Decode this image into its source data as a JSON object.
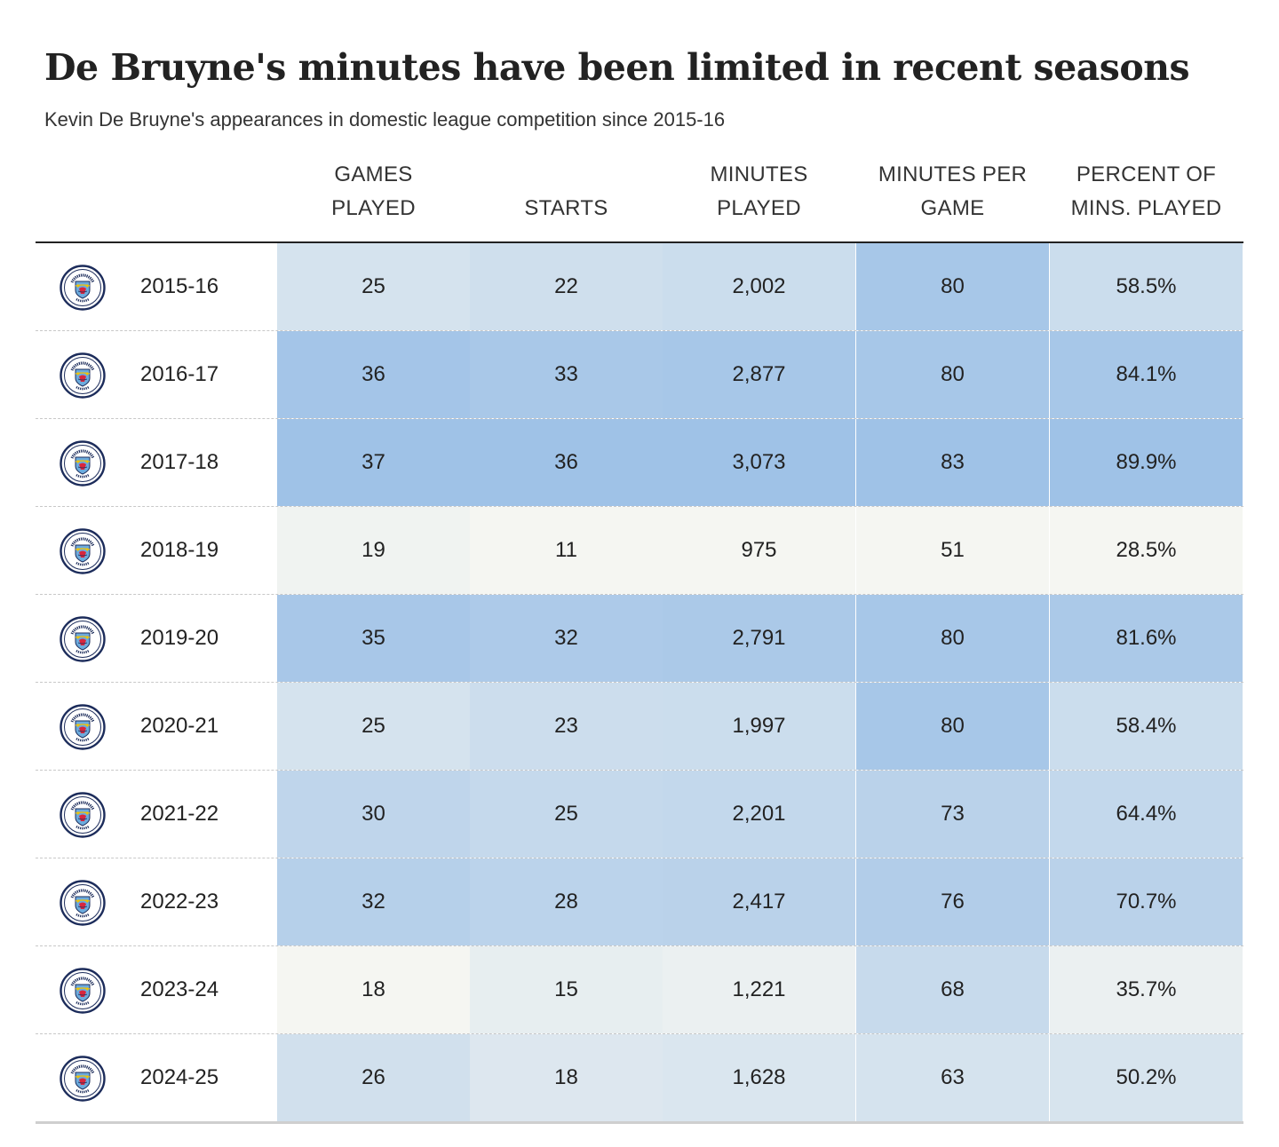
{
  "title": "De Bruyne's minutes have been limited in recent seasons",
  "subtitle": "Kevin De Bruyne's appearances in domestic league competition since 2015-16",
  "logo_icon": "manchester-city-crest-icon",
  "logo_text": "MANCHESTER CITY",
  "colors": {
    "low": "#f5f6f2",
    "high": "#9fc2e7",
    "text": "#222222"
  },
  "chart_data": {
    "type": "table",
    "columns": [
      {
        "key": "games",
        "label": [
          "GAMES",
          "PLAYED"
        ]
      },
      {
        "key": "starts",
        "label": [
          "STARTS"
        ]
      },
      {
        "key": "minutes",
        "label": [
          "MINUTES",
          "PLAYED"
        ]
      },
      {
        "key": "mpg",
        "label": [
          "MINUTES PER",
          "GAME"
        ]
      },
      {
        "key": "pct",
        "label": [
          "PERCENT OF",
          "MINS. PLAYED"
        ]
      }
    ],
    "rows": [
      {
        "season": "2015-16",
        "games": 25,
        "starts": 22,
        "minutes": 2002,
        "mpg": 80,
        "pct": 58.5
      },
      {
        "season": "2016-17",
        "games": 36,
        "starts": 33,
        "minutes": 2877,
        "mpg": 80,
        "pct": 84.1
      },
      {
        "season": "2017-18",
        "games": 37,
        "starts": 36,
        "minutes": 3073,
        "mpg": 83,
        "pct": 89.9
      },
      {
        "season": "2018-19",
        "games": 19,
        "starts": 11,
        "minutes": 975,
        "mpg": 51,
        "pct": 28.5
      },
      {
        "season": "2019-20",
        "games": 35,
        "starts": 32,
        "minutes": 2791,
        "mpg": 80,
        "pct": 81.6
      },
      {
        "season": "2020-21",
        "games": 25,
        "starts": 23,
        "minutes": 1997,
        "mpg": 80,
        "pct": 58.4
      },
      {
        "season": "2021-22",
        "games": 30,
        "starts": 25,
        "minutes": 2201,
        "mpg": 73,
        "pct": 64.4
      },
      {
        "season": "2022-23",
        "games": 32,
        "starts": 28,
        "minutes": 2417,
        "mpg": 76,
        "pct": 70.7
      },
      {
        "season": "2023-24",
        "games": 18,
        "starts": 15,
        "minutes": 1221,
        "mpg": 68,
        "pct": 35.7
      },
      {
        "season": "2024-25",
        "games": 26,
        "starts": 18,
        "minutes": 1628,
        "mpg": 63,
        "pct": 50.2
      }
    ]
  }
}
